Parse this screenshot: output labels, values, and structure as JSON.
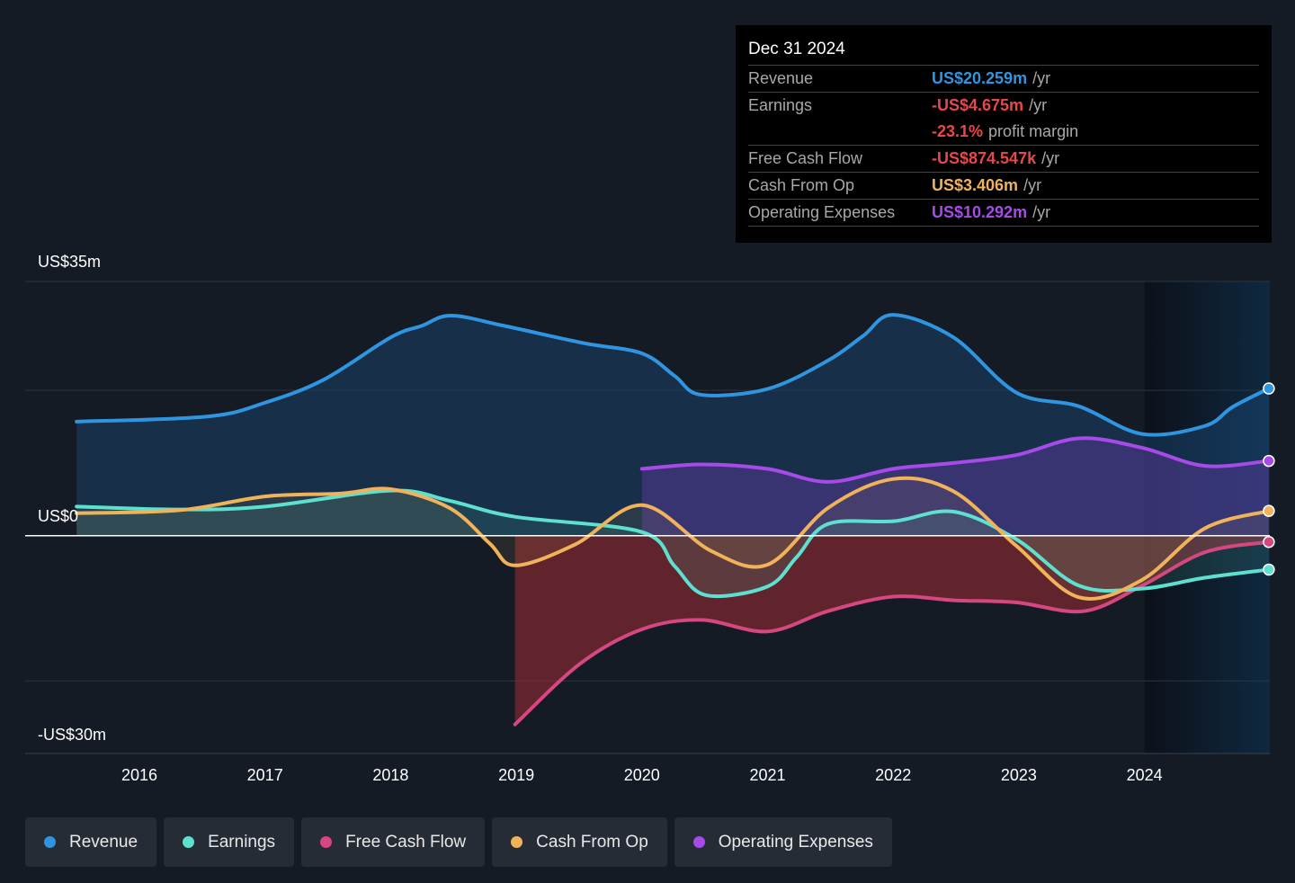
{
  "tooltip": {
    "date": "Dec 31 2024",
    "rows": [
      {
        "label": "Revenue",
        "value": "US$20.259m",
        "unit": "/yr",
        "color": "#2f95e0"
      },
      {
        "label": "Earnings",
        "value": "-US$4.675m",
        "unit": "/yr",
        "color": "#e8474b"
      },
      {
        "label": "",
        "value": "-23.1%",
        "unit": "profit margin",
        "color": "#e8474b"
      },
      {
        "label": "Free Cash Flow",
        "value": "-US$874.547k",
        "unit": "/yr",
        "color": "#e8474b"
      },
      {
        "label": "Cash From Op",
        "value": "US$3.406m",
        "unit": "/yr",
        "color": "#f0b35b"
      },
      {
        "label": "Operating Expenses",
        "value": "US$10.292m",
        "unit": "/yr",
        "color": "#a64ae8"
      }
    ]
  },
  "legend": [
    {
      "label": "Revenue",
      "color": "#2f95e0"
    },
    {
      "label": "Earnings",
      "color": "#5ee0d0"
    },
    {
      "label": "Free Cash Flow",
      "color": "#d4477f"
    },
    {
      "label": "Cash From Op",
      "color": "#f0b35b"
    },
    {
      "label": "Operating Expenses",
      "color": "#a64ae8"
    }
  ],
  "chart_data": {
    "type": "area",
    "ylim": [
      -30,
      35
    ],
    "y_tick_labels": {
      "top": "US$35m",
      "zero": "US$0",
      "bottom": "-US$30m"
    },
    "x_ticks": [
      "2016",
      "2017",
      "2018",
      "2019",
      "2020",
      "2021",
      "2022",
      "2023",
      "2024"
    ],
    "xlim": [
      2015.1,
      2025.0
    ],
    "highlight_from": 2024.0,
    "series": [
      {
        "name": "Revenue",
        "color": "#2f95e0",
        "fill": "#1b4a75",
        "x": [
          2015.5,
          2016.54,
          2017.0,
          2017.47,
          2018.0,
          2018.25,
          2018.48,
          2018.9,
          2019.54,
          2020.0,
          2020.26,
          2020.47,
          2021.0,
          2021.48,
          2021.76,
          2022.0,
          2022.48,
          2022.98,
          2023.48,
          2023.98,
          2024.48,
          2024.7,
          2024.99
        ],
        "y": [
          15.7,
          16.4,
          18.3,
          21.5,
          27.3,
          28.9,
          30.3,
          28.9,
          26.5,
          25.1,
          22.0,
          19.4,
          20.2,
          24.1,
          27.5,
          30.4,
          27.3,
          19.7,
          17.8,
          14.0,
          15.1,
          17.7,
          20.26
        ]
      },
      {
        "name": "Operating Expenses",
        "color": "#a64ae8",
        "fill": "#5a3a9a",
        "x": [
          2020.0,
          2020.47,
          2021.0,
          2021.48,
          2022.0,
          2022.48,
          2022.98,
          2023.48,
          2023.98,
          2024.48,
          2024.99
        ],
        "y": [
          9.2,
          9.8,
          9.2,
          7.4,
          9.2,
          10.0,
          11.1,
          13.4,
          12.1,
          9.6,
          10.29
        ]
      },
      {
        "name": "Free Cash Flow",
        "color": "#d4477f",
        "fill": "#a02c35",
        "x": [
          2018.99,
          2019.51,
          2020.0,
          2020.47,
          2021.0,
          2021.48,
          2022.0,
          2022.48,
          2022.98,
          2023.52,
          2023.98,
          2024.48,
          2024.99
        ],
        "y": [
          -26.0,
          -17.6,
          -12.9,
          -11.6,
          -13.2,
          -10.4,
          -8.4,
          -8.9,
          -9.2,
          -10.4,
          -6.9,
          -2.3,
          -0.87
        ]
      },
      {
        "name": "Earnings",
        "color": "#5ee0d0",
        "fill": "#4aa090",
        "x": [
          2015.5,
          2016.32,
          2017.0,
          2018.0,
          2018.47,
          2018.99,
          2020.0,
          2020.26,
          2020.51,
          2021.0,
          2021.23,
          2021.48,
          2022.01,
          2022.48,
          2022.98,
          2023.48,
          2023.98,
          2024.48,
          2024.99
        ],
        "y": [
          4.0,
          3.6,
          4.0,
          6.2,
          4.8,
          2.6,
          0.5,
          -4.2,
          -8.2,
          -7.0,
          -3.0,
          1.6,
          2.0,
          3.3,
          -0.5,
          -6.9,
          -7.3,
          -5.8,
          -4.675
        ]
      },
      {
        "name": "Cash From Op",
        "color": "#f0b35b",
        "fill": "#b08a50",
        "x": [
          2015.5,
          2016.32,
          2017.0,
          2017.6,
          2018.0,
          2018.47,
          2018.79,
          2018.99,
          2019.47,
          2020.0,
          2020.55,
          2021.0,
          2021.48,
          2022.0,
          2022.48,
          2022.98,
          2023.48,
          2023.98,
          2024.48,
          2024.99
        ],
        "y": [
          3.1,
          3.5,
          5.4,
          5.8,
          6.4,
          3.8,
          -1.1,
          -4.1,
          -1.2,
          4.2,
          -2.1,
          -4.0,
          3.8,
          7.8,
          6.1,
          -1.4,
          -8.5,
          -6.1,
          1.0,
          3.406
        ]
      }
    ]
  }
}
